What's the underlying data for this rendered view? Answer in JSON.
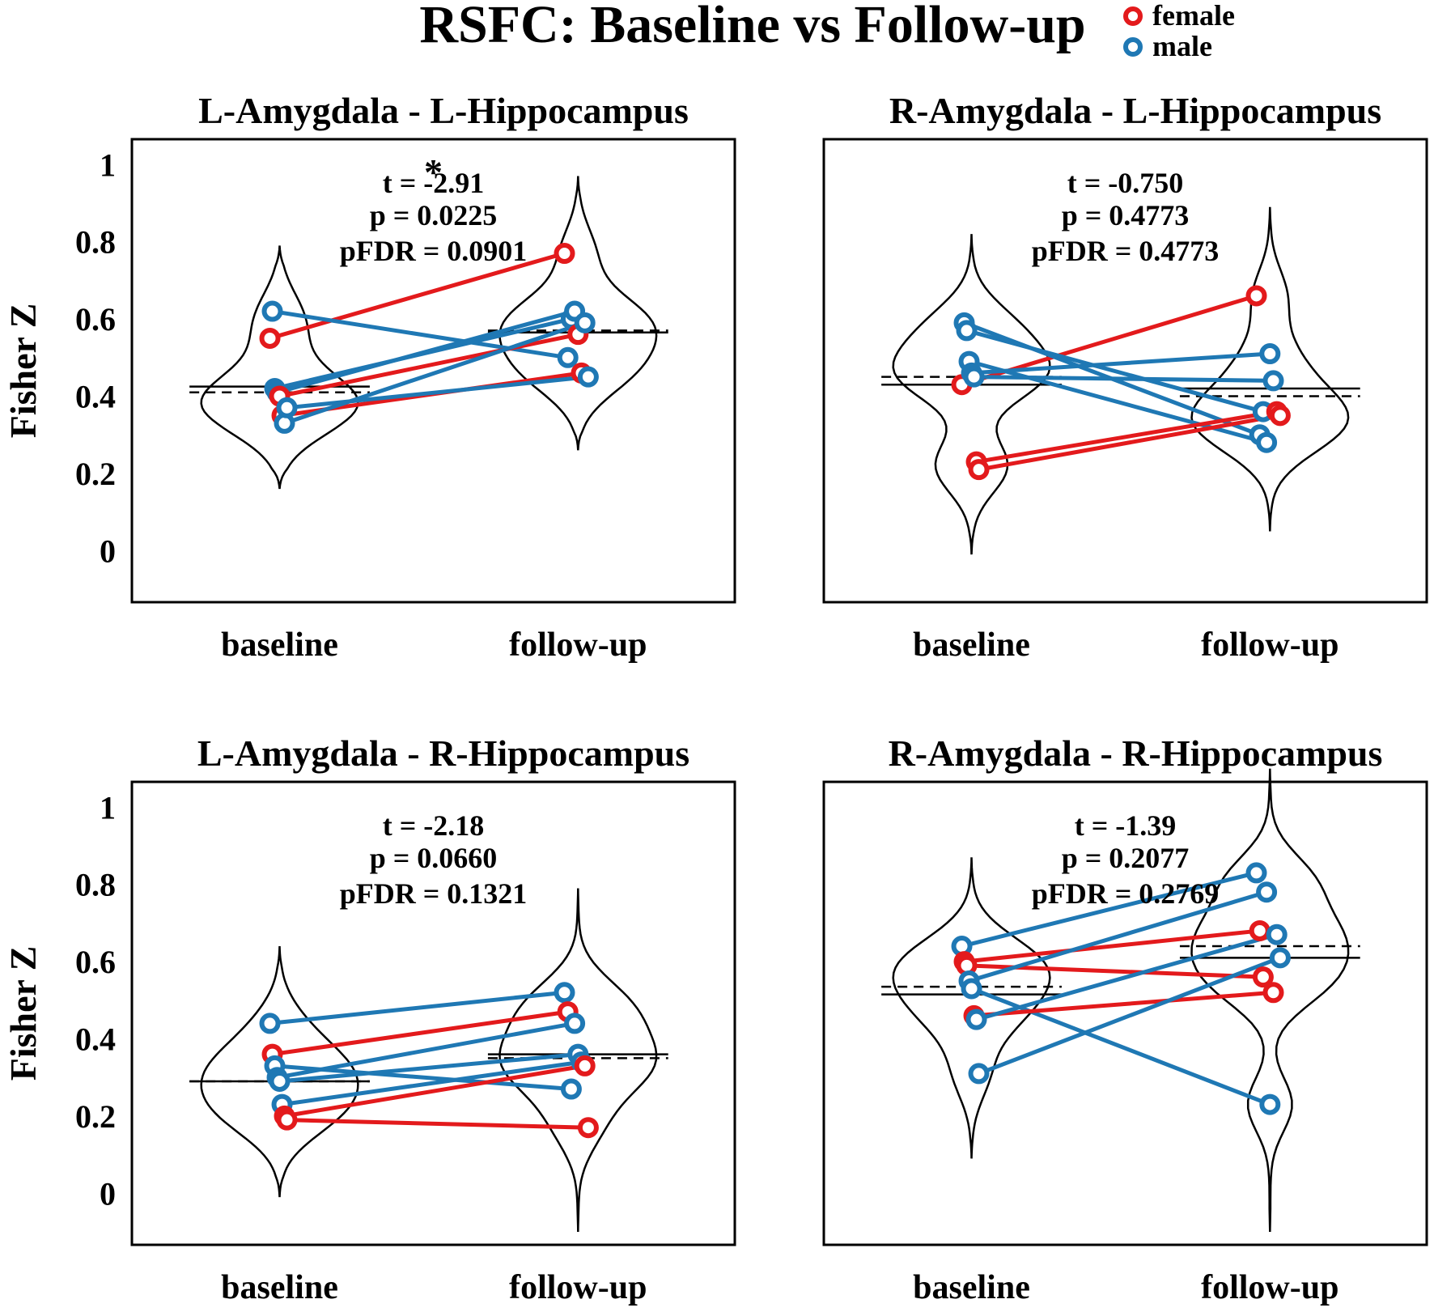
{
  "title": "RSFC: Baseline vs Follow-up",
  "legend": [
    {
      "label": "female",
      "color": "#e31a1c"
    },
    {
      "label": "male",
      "color": "#1f78b4"
    }
  ],
  "colors": {
    "female": "#e31a1c",
    "male": "#1f78b4",
    "axis": "#000000"
  },
  "chart_data": [
    {
      "type": "violin-paired",
      "title": "L-Amygdala - L-Hippocampus",
      "ylabel": "Fisher Z",
      "ylim": [
        -0.1,
        1.1
      ],
      "yticks": [
        0,
        0.2,
        0.4,
        0.6,
        0.8,
        1
      ],
      "categories": [
        "baseline",
        "follow-up"
      ],
      "stats": {
        "t": "t = -2.91",
        "p": "p = 0.0225",
        "pfdr": "pFDR = 0.0901",
        "significance": "*"
      },
      "median": [
        0.425,
        0.565
      ],
      "mean": [
        0.41,
        0.57
      ],
      "violin_range": [
        [
          0.16,
          0.79
        ],
        [
          0.26,
          0.97
        ]
      ],
      "pairs": [
        {
          "sex": "female",
          "baseline": 0.55,
          "followup": 0.77
        },
        {
          "sex": "male",
          "baseline": 0.62,
          "followup": 0.5
        },
        {
          "sex": "male",
          "baseline": 0.42,
          "followup": 0.6
        },
        {
          "sex": "male",
          "baseline": 0.41,
          "followup": 0.62
        },
        {
          "sex": "female",
          "baseline": 0.4,
          "followup": 0.56
        },
        {
          "sex": "female",
          "baseline": 0.35,
          "followup": 0.46
        },
        {
          "sex": "male",
          "baseline": 0.33,
          "followup": 0.59
        },
        {
          "sex": "male",
          "baseline": 0.37,
          "followup": 0.45
        }
      ]
    },
    {
      "type": "violin-paired",
      "title": "R-Amygdala - L-Hippocampus",
      "ylabel": "",
      "ylim": [
        -0.1,
        1.1
      ],
      "yticks": [],
      "categories": [
        "baseline",
        "follow-up"
      ],
      "stats": {
        "t": "t = -0.750",
        "p": "p = 0.4773",
        "pfdr": "pFDR = 0.4773",
        "significance": ""
      },
      "median": [
        0.43,
        0.42
      ],
      "mean": [
        0.45,
        0.4
      ],
      "violin_range": [
        [
          -0.01,
          0.82
        ],
        [
          0.05,
          0.89
        ]
      ],
      "pairs": [
        {
          "sex": "female",
          "baseline": 0.43,
          "followup": 0.66
        },
        {
          "sex": "male",
          "baseline": 0.59,
          "followup": 0.3
        },
        {
          "sex": "male",
          "baseline": 0.57,
          "followup": 0.36
        },
        {
          "sex": "male",
          "baseline": 0.49,
          "followup": 0.28
        },
        {
          "sex": "male",
          "baseline": 0.46,
          "followup": 0.51
        },
        {
          "sex": "male",
          "baseline": 0.45,
          "followup": 0.44
        },
        {
          "sex": "female",
          "baseline": 0.23,
          "followup": 0.36
        },
        {
          "sex": "female",
          "baseline": 0.21,
          "followup": 0.35
        }
      ]
    },
    {
      "type": "violin-paired",
      "title": "L-Amygdala - R-Hippocampus",
      "ylabel": "Fisher Z",
      "ylim": [
        -0.1,
        1.1
      ],
      "yticks": [
        0,
        0.2,
        0.4,
        0.6,
        0.8,
        1
      ],
      "categories": [
        "baseline",
        "follow-up"
      ],
      "stats": {
        "t": "t = -2.18",
        "p": "p = 0.0660",
        "pfdr": "pFDR = 0.1321",
        "significance": ""
      },
      "median": [
        0.29,
        0.36
      ],
      "mean": [
        0.29,
        0.35
      ],
      "violin_range": [
        [
          -0.01,
          0.64
        ],
        [
          -0.1,
          0.79
        ]
      ],
      "pairs": [
        {
          "sex": "male",
          "baseline": 0.44,
          "followup": 0.52
        },
        {
          "sex": "female",
          "baseline": 0.36,
          "followup": 0.47
        },
        {
          "sex": "male",
          "baseline": 0.33,
          "followup": 0.27
        },
        {
          "sex": "male",
          "baseline": 0.3,
          "followup": 0.44
        },
        {
          "sex": "male",
          "baseline": 0.29,
          "followup": 0.36
        },
        {
          "sex": "male",
          "baseline": 0.23,
          "followup": 0.34
        },
        {
          "sex": "female",
          "baseline": 0.2,
          "followup": 0.33
        },
        {
          "sex": "female",
          "baseline": 0.19,
          "followup": 0.17
        }
      ]
    },
    {
      "type": "violin-paired",
      "title": "R-Amygdala - R-Hippocampus",
      "ylabel": "",
      "ylim": [
        -0.1,
        1.1
      ],
      "yticks": [],
      "categories": [
        "baseline",
        "follow-up"
      ],
      "stats": {
        "t": "t = -1.39",
        "p": "p = 0.2077",
        "pfdr": "pFDR = 0.2769",
        "significance": ""
      },
      "median": [
        0.515,
        0.61
      ],
      "mean": [
        0.535,
        0.64
      ],
      "violin_range": [
        [
          0.09,
          0.87
        ],
        [
          -0.1,
          1.1
        ]
      ],
      "pairs": [
        {
          "sex": "male",
          "baseline": 0.64,
          "followup": 0.83
        },
        {
          "sex": "female",
          "baseline": 0.6,
          "followup": 0.68
        },
        {
          "sex": "female",
          "baseline": 0.59,
          "followup": 0.56
        },
        {
          "sex": "male",
          "baseline": 0.55,
          "followup": 0.78
        },
        {
          "sex": "male",
          "baseline": 0.53,
          "followup": 0.23
        },
        {
          "sex": "female",
          "baseline": 0.46,
          "followup": 0.52
        },
        {
          "sex": "male",
          "baseline": 0.45,
          "followup": 0.67
        },
        {
          "sex": "male",
          "baseline": 0.31,
          "followup": 0.61
        }
      ]
    }
  ]
}
